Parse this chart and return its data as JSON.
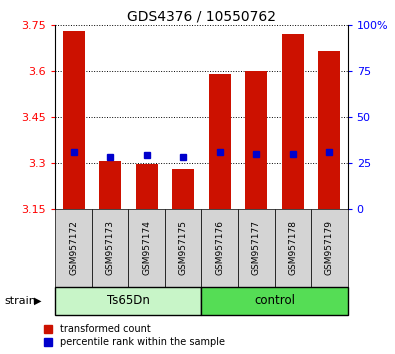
{
  "title": "GDS4376 / 10550762",
  "samples": [
    "GSM957172",
    "GSM957173",
    "GSM957174",
    "GSM957175",
    "GSM957176",
    "GSM957177",
    "GSM957178",
    "GSM957179"
  ],
  "bar_values": [
    3.73,
    3.305,
    3.295,
    3.28,
    3.59,
    3.6,
    3.72,
    3.665
  ],
  "blue_dot_values": [
    3.335,
    3.32,
    3.325,
    3.32,
    3.335,
    3.33,
    3.33,
    3.335
  ],
  "ylim": [
    3.15,
    3.75
  ],
  "yticks": [
    3.15,
    3.3,
    3.45,
    3.6,
    3.75
  ],
  "right_yticks": [
    0,
    25,
    50,
    75,
    100
  ],
  "bar_color": "#cc1100",
  "dot_color": "#0000cc",
  "group1_label": "Ts65Dn",
  "group2_label": "control",
  "group1_indices": [
    0,
    1,
    2,
    3
  ],
  "group2_indices": [
    4,
    5,
    6,
    7
  ],
  "group1_bg": "#c8f5c8",
  "group2_bg": "#55dd55",
  "tick_label_bg": "#d4d4d4",
  "legend_red_label": "transformed count",
  "legend_blue_label": "percentile rank within the sample",
  "strain_label": "strain",
  "background_color": "#ffffff"
}
